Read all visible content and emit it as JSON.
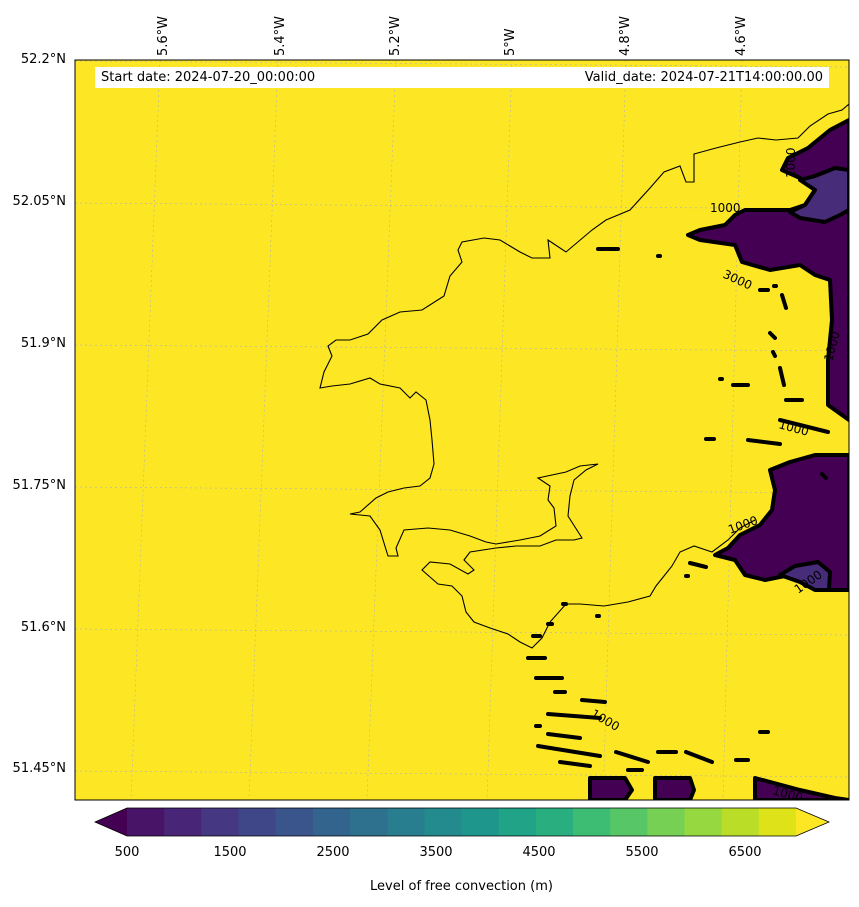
{
  "map": {
    "start_date": "Start date: 2024-07-20_00:00:00",
    "valid_date": "Valid_date: 2024-07-21T14:00:00.00",
    "lon_labels": [
      "5.6°W",
      "5.4°W",
      "5.2°W",
      "5°W",
      "4.8°W",
      "4.6°W"
    ],
    "lat_labels": [
      "52.2°N",
      "52.05°N",
      "51.9°N",
      "51.75°N",
      "51.6°N",
      "51.45°N"
    ],
    "contour_labels": [
      "1000",
      "3000",
      "1000",
      "1000",
      "1000",
      "1000",
      "1000",
      "1000",
      "1000"
    ],
    "colors": {
      "background_field": "#fde725",
      "low_field": "#440154",
      "mid_field": "#472c7a",
      "gridline": "#b0b0b0"
    }
  },
  "colorbar": {
    "label": "Level of free convection (m)",
    "ticks": [
      "500",
      "1500",
      "2500",
      "3500",
      "4500",
      "5500",
      "6500"
    ],
    "levels": [
      500,
      1000,
      1500,
      2000,
      2500,
      3000,
      3500,
      4000,
      4500,
      5000,
      5500,
      6000,
      6500,
      7000
    ],
    "colors": [
      "#440154",
      "#481467",
      "#482576",
      "#453781",
      "#3f4788",
      "#39558c",
      "#32648e",
      "#2d718e",
      "#287d8e",
      "#238a8d",
      "#1f968b",
      "#20a386",
      "#29af7f",
      "#3dbc74",
      "#56c667",
      "#75d054",
      "#95d840",
      "#bade28",
      "#dde318",
      "#fde725"
    ]
  }
}
